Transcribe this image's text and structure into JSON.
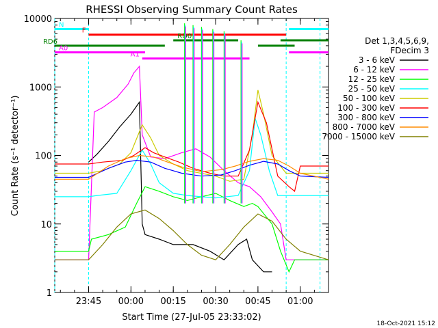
{
  "chart_data": {
    "type": "line",
    "title": "RHESSI Observing Summary Count Rates",
    "xlabel": "Start Time (27-Jul-05 23:33:02)",
    "ylabel": "Count Rate (s⁻¹ detector⁻¹)",
    "ylog": true,
    "ylim": [
      1,
      10000
    ],
    "xlim": [
      "23:33",
      "01:10"
    ],
    "x_ticks": [
      "23:45",
      "00:00",
      "00:15",
      "00:30",
      "00:45",
      "01:00"
    ],
    "y_ticks": [
      "1",
      "10",
      "100",
      "1000",
      "10000"
    ],
    "legend_header": [
      "Det 1,3,4,5,6,9,",
      "FDecim 3"
    ],
    "legend_position": "right",
    "timestamp": "18-Oct-2021 15:12",
    "series": [
      {
        "name": "3 - 6 keV",
        "color": "#000000",
        "points": [
          [
            "23:45",
            80
          ],
          [
            "23:48",
            105
          ],
          [
            "23:52",
            160
          ],
          [
            "23:56",
            260
          ],
          [
            "00:00",
            400
          ],
          [
            "00:03",
            600
          ],
          [
            "00:04",
            10
          ],
          [
            "00:05",
            7
          ],
          [
            "00:10",
            6
          ],
          [
            "00:15",
            5
          ],
          [
            "00:22",
            5
          ],
          [
            "00:28",
            4
          ],
          [
            "00:33",
            3
          ],
          [
            "00:38",
            5
          ],
          [
            "00:41",
            6
          ],
          [
            "00:43",
            3
          ],
          [
            "00:47",
            2
          ],
          [
            "00:50",
            2
          ]
        ]
      },
      {
        "name": "6 - 12 keV",
        "color": "#ff00ff",
        "points": [
          [
            "23:33",
            3
          ],
          [
            "23:45",
            3
          ],
          [
            "23:47",
            430
          ],
          [
            "23:50",
            500
          ],
          [
            "23:55",
            700
          ],
          [
            "23:59",
            1100
          ],
          [
            "00:01",
            1600
          ],
          [
            "00:03",
            2000
          ],
          [
            "00:04",
            200
          ],
          [
            "00:07",
            95
          ],
          [
            "00:12",
            90
          ],
          [
            "00:18",
            110
          ],
          [
            "00:23",
            125
          ],
          [
            "00:28",
            95
          ],
          [
            "00:33",
            60
          ],
          [
            "00:38",
            40
          ],
          [
            "00:42",
            35
          ],
          [
            "00:46",
            25
          ],
          [
            "00:50",
            15
          ],
          [
            "00:53",
            10
          ],
          [
            "00:55",
            3
          ],
          [
            "01:10",
            3
          ]
        ]
      },
      {
        "name": "12 - 25 keV",
        "color": "#00ff00",
        "points": [
          [
            "23:33",
            4
          ],
          [
            "23:45",
            4
          ],
          [
            "23:46",
            6
          ],
          [
            "23:52",
            7
          ],
          [
            "23:58",
            9
          ],
          [
            "00:02",
            20
          ],
          [
            "00:05",
            35
          ],
          [
            "00:10",
            30
          ],
          [
            "00:15",
            25
          ],
          [
            "00:20",
            22
          ],
          [
            "00:25",
            25
          ],
          [
            "00:30",
            28
          ],
          [
            "00:35",
            22
          ],
          [
            "00:40",
            18
          ],
          [
            "00:43",
            20
          ],
          [
            "00:45",
            18
          ],
          [
            "00:50",
            10
          ],
          [
            "00:53",
            4
          ],
          [
            "00:56",
            2
          ],
          [
            "00:58",
            3
          ],
          [
            "01:10",
            3
          ]
        ]
      },
      {
        "name": "25 - 50 keV",
        "color": "#00ffff",
        "points": [
          [
            "23:33",
            25
          ],
          [
            "23:45",
            25
          ],
          [
            "23:48",
            26
          ],
          [
            "23:55",
            28
          ],
          [
            "00:00",
            60
          ],
          [
            "00:04",
            120
          ],
          [
            "00:07",
            75
          ],
          [
            "00:10",
            40
          ],
          [
            "00:15",
            28
          ],
          [
            "00:20",
            26
          ],
          [
            "00:30",
            24
          ],
          [
            "00:38",
            26
          ],
          [
            "00:42",
            60
          ],
          [
            "00:44",
            350
          ],
          [
            "00:46",
            200
          ],
          [
            "00:49",
            60
          ],
          [
            "00:52",
            26
          ],
          [
            "01:10",
            26
          ]
        ]
      },
      {
        "name": "50 - 100 keV",
        "color": "#cccc00",
        "points": [
          [
            "23:33",
            55
          ],
          [
            "23:45",
            55
          ],
          [
            "23:50",
            60
          ],
          [
            "23:56",
            75
          ],
          [
            "00:00",
            110
          ],
          [
            "00:04",
            280
          ],
          [
            "00:07",
            180
          ],
          [
            "00:10",
            100
          ],
          [
            "00:15",
            75
          ],
          [
            "00:20",
            60
          ],
          [
            "00:30",
            50
          ],
          [
            "00:35",
            42
          ],
          [
            "00:40",
            45
          ],
          [
            "00:43",
            200
          ],
          [
            "00:45",
            900
          ],
          [
            "00:47",
            400
          ],
          [
            "00:50",
            100
          ],
          [
            "00:55",
            55
          ],
          [
            "01:10",
            55
          ]
        ]
      },
      {
        "name": "100 - 300 keV",
        "color": "#ff0000",
        "points": [
          [
            "23:33",
            75
          ],
          [
            "23:45",
            75
          ],
          [
            "23:50",
            80
          ],
          [
            "23:57",
            85
          ],
          [
            "00:01",
            100
          ],
          [
            "00:05",
            130
          ],
          [
            "00:08",
            110
          ],
          [
            "00:12",
            95
          ],
          [
            "00:17",
            80
          ],
          [
            "00:22",
            65
          ],
          [
            "00:28",
            55
          ],
          [
            "00:33",
            50
          ],
          [
            "00:38",
            50
          ],
          [
            "00:42",
            120
          ],
          [
            "00:45",
            600
          ],
          [
            "00:48",
            300
          ],
          [
            "00:52",
            50
          ],
          [
            "00:56",
            35
          ],
          [
            "00:58",
            30
          ],
          [
            "01:00",
            70
          ],
          [
            "01:10",
            70
          ]
        ]
      },
      {
        "name": "300 - 800 keV",
        "color": "#0000ff",
        "points": [
          [
            "23:33",
            48
          ],
          [
            "23:45",
            48
          ],
          [
            "23:52",
            65
          ],
          [
            "23:58",
            80
          ],
          [
            "00:02",
            85
          ],
          [
            "00:07",
            80
          ],
          [
            "00:12",
            65
          ],
          [
            "00:18",
            55
          ],
          [
            "00:25",
            50
          ],
          [
            "00:32",
            52
          ],
          [
            "00:37",
            60
          ],
          [
            "00:42",
            72
          ],
          [
            "00:47",
            82
          ],
          [
            "00:52",
            75
          ],
          [
            "00:56",
            60
          ],
          [
            "01:00",
            50
          ],
          [
            "01:10",
            48
          ]
        ]
      },
      {
        "name": "800 - 7000 keV",
        "color": "#ff8c00",
        "points": [
          [
            "23:33",
            45
          ],
          [
            "23:45",
            45
          ],
          [
            "23:52",
            70
          ],
          [
            "23:58",
            90
          ],
          [
            "00:03",
            100
          ],
          [
            "00:08",
            95
          ],
          [
            "00:13",
            80
          ],
          [
            "00:18",
            68
          ],
          [
            "00:25",
            58
          ],
          [
            "00:32",
            62
          ],
          [
            "00:37",
            70
          ],
          [
            "00:42",
            82
          ],
          [
            "00:47",
            90
          ],
          [
            "00:52",
            85
          ],
          [
            "00:56",
            70
          ],
          [
            "01:00",
            55
          ],
          [
            "01:10",
            45
          ]
        ]
      },
      {
        "name": "7000 - 15000 keV",
        "color": "#808000",
        "points": [
          [
            "23:33",
            3
          ],
          [
            "23:45",
            3
          ],
          [
            "23:50",
            5
          ],
          [
            "23:55",
            9
          ],
          [
            "00:00",
            14
          ],
          [
            "00:05",
            16
          ],
          [
            "00:10",
            12
          ],
          [
            "00:15",
            8
          ],
          [
            "00:20",
            5
          ],
          [
            "00:25",
            3.5
          ],
          [
            "00:30",
            3
          ],
          [
            "00:35",
            5
          ],
          [
            "00:40",
            9
          ],
          [
            "00:45",
            14
          ],
          [
            "00:50",
            11
          ],
          [
            "00:55",
            6
          ],
          [
            "01:00",
            4
          ],
          [
            "01:10",
            3
          ]
        ]
      }
    ],
    "flag_bars": [
      {
        "label": "N",
        "color": "#00ffff",
        "segments": [
          [
            "23:33",
            "23:45"
          ],
          [
            "00:56",
            "01:10"
          ]
        ],
        "level": 7000
      },
      {
        "label": "F",
        "color": "#ff0000",
        "segments": [
          [
            "23:45",
            "00:55"
          ]
        ],
        "level": 5800
      },
      {
        "label": "RD0",
        "color": "#008000",
        "segments": [
          [
            "00:15",
            "00:38"
          ],
          [
            "00:53",
            "01:10"
          ]
        ],
        "level": 4800
      },
      {
        "label": "RD6",
        "color": "#008000",
        "segments": [
          [
            "23:33",
            "00:12"
          ],
          [
            "00:45",
            "00:58"
          ]
        ],
        "level": 4000
      },
      {
        "label": "A0",
        "color": "#ff00ff",
        "segments": [
          [
            "23:33",
            "00:05"
          ],
          [
            "00:56",
            "01:10"
          ]
        ],
        "level": 3200
      },
      {
        "label": "A1",
        "color": "#ff00ff",
        "segments": [
          [
            "00:04",
            "00:42"
          ]
        ],
        "level": 2600
      }
    ],
    "spikes": [
      {
        "t": "00:19",
        "peak": 8500
      },
      {
        "t": "00:22",
        "peak": 8000
      },
      {
        "t": "00:25",
        "peak": 7500
      },
      {
        "t": "00:29",
        "peak": 7000
      },
      {
        "t": "00:33",
        "peak": 6500
      },
      {
        "t": "00:39",
        "peak": 4800
      }
    ],
    "reference_lines_cyan": [
      "23:33",
      "23:45",
      "00:55",
      "01:07"
    ]
  }
}
